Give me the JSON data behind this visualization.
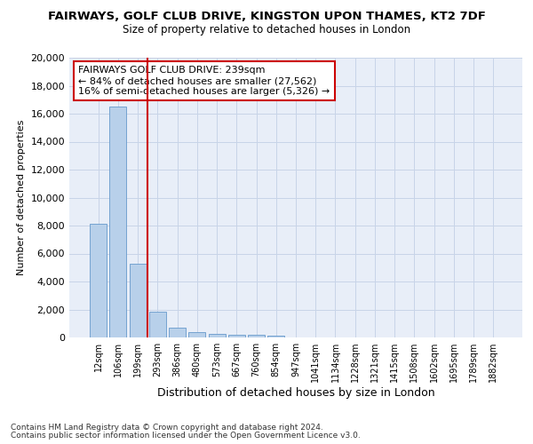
{
  "title": "FAIRWAYS, GOLF CLUB DRIVE, KINGSTON UPON THAMES, KT2 7DF",
  "subtitle": "Size of property relative to detached houses in London",
  "xlabel": "Distribution of detached houses by size in London",
  "ylabel": "Number of detached properties",
  "categories": [
    "12sqm",
    "106sqm",
    "199sqm",
    "293sqm",
    "386sqm",
    "480sqm",
    "573sqm",
    "667sqm",
    "760sqm",
    "854sqm",
    "947sqm",
    "1041sqm",
    "1134sqm",
    "1228sqm",
    "1321sqm",
    "1415sqm",
    "1508sqm",
    "1602sqm",
    "1695sqm",
    "1789sqm",
    "1882sqm"
  ],
  "bar_values": [
    8100,
    16500,
    5300,
    1850,
    700,
    350,
    270,
    200,
    180,
    130,
    0,
    0,
    0,
    0,
    0,
    0,
    0,
    0,
    0,
    0,
    0
  ],
  "bar_color": "#b8d0ea",
  "bar_edge_color": "#6699cc",
  "vline_color": "#cc0000",
  "annotation_text": "FAIRWAYS GOLF CLUB DRIVE: 239sqm\n← 84% of detached houses are smaller (27,562)\n16% of semi-detached houses are larger (5,326) →",
  "annotation_box_color": "#cc0000",
  "ylim": [
    0,
    20000
  ],
  "yticks": [
    0,
    2000,
    4000,
    6000,
    8000,
    10000,
    12000,
    14000,
    16000,
    18000,
    20000
  ],
  "grid_color": "#c8d4e8",
  "bg_color": "#e8eef8",
  "footnote1": "Contains HM Land Registry data © Crown copyright and database right 2024.",
  "footnote2": "Contains public sector information licensed under the Open Government Licence v3.0."
}
